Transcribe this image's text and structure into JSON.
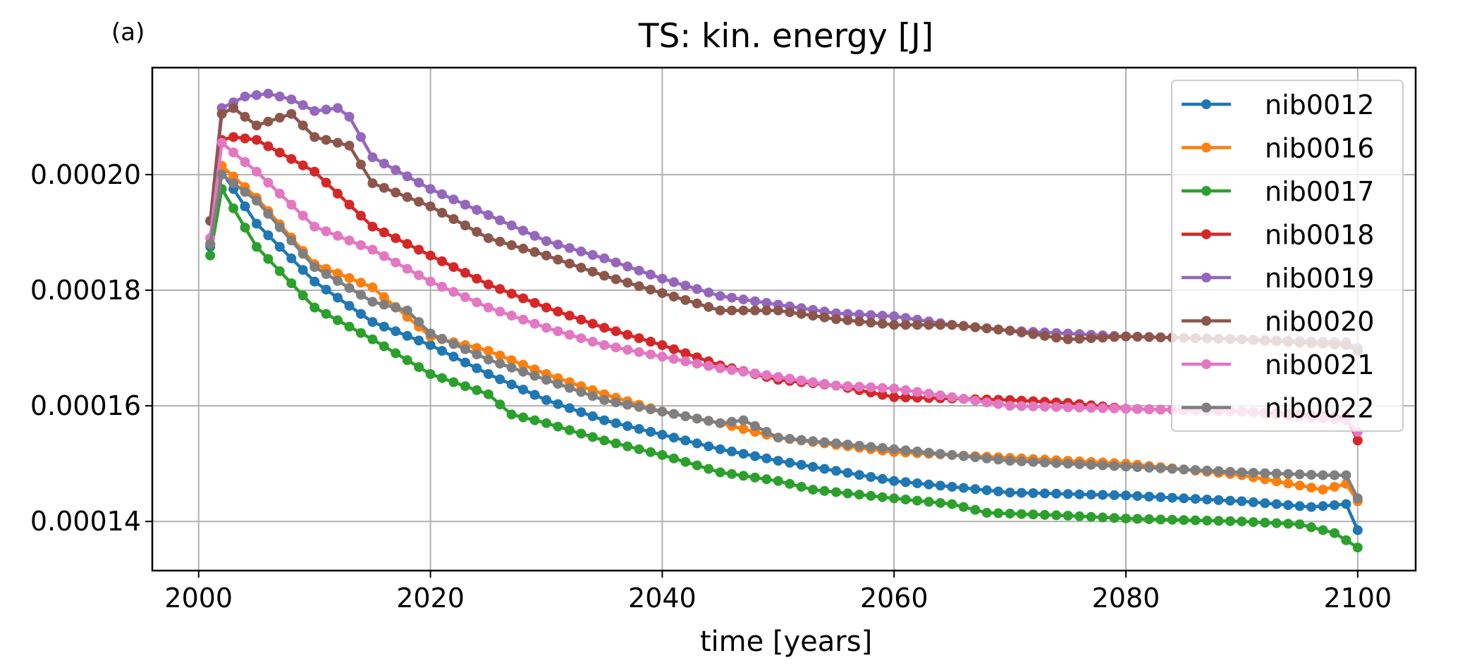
{
  "panel_label": "(a)",
  "chart_data": {
    "type": "line",
    "title": "TS: kin. energy [J]",
    "xlabel": "time [years]",
    "ylabel": "",
    "xlim": [
      1996,
      2105
    ],
    "ylim": [
      0.0001315,
      0.0002185
    ],
    "xticks": [
      2000,
      2020,
      2040,
      2060,
      2080,
      2100
    ],
    "yticks": [
      0.00014,
      0.00016,
      0.00018,
      0.0002
    ],
    "ytick_labels": [
      "0.00014",
      "0.00016",
      "0.00018",
      "0.00020"
    ],
    "grid": true,
    "legend_position": "upper right",
    "series": [
      {
        "name": "nib0012",
        "color": "#1f77b4",
        "points": [
          [
            2001,
            0.0001875
          ],
          [
            2002,
            0.0002005
          ],
          [
            2005,
            0.0001915
          ],
          [
            2010,
            0.0001815
          ],
          [
            2015,
            0.0001745
          ],
          [
            2020,
            0.0001705
          ],
          [
            2025,
            0.0001655
          ],
          [
            2030,
            0.000161
          ],
          [
            2035,
            0.0001575
          ],
          [
            2040,
            0.000155
          ],
          [
            2045,
            0.0001525
          ],
          [
            2050,
            0.0001505
          ],
          [
            2060,
            0.000147
          ],
          [
            2070,
            0.000145
          ],
          [
            2080,
            0.0001445
          ],
          [
            2090,
            0.0001435
          ],
          [
            2096,
            0.0001425
          ],
          [
            2099,
            0.000143
          ],
          [
            2100,
            0.0001385
          ]
        ]
      },
      {
        "name": "nib0016",
        "color": "#ff7f0e",
        "points": [
          [
            2001,
            0.000188
          ],
          [
            2002,
            0.0002015
          ],
          [
            2005,
            0.000196
          ],
          [
            2010,
            0.0001845
          ],
          [
            2015,
            0.0001805
          ],
          [
            2020,
            0.000172
          ],
          [
            2025,
            0.0001695
          ],
          [
            2030,
            0.0001655
          ],
          [
            2035,
            0.000162
          ],
          [
            2040,
            0.000159
          ],
          [
            2045,
            0.000157
          ],
          [
            2050,
            0.0001545
          ],
          [
            2060,
            0.000152
          ],
          [
            2070,
            0.000151
          ],
          [
            2080,
            0.00015
          ],
          [
            2090,
            0.000148
          ],
          [
            2097,
            0.0001455
          ],
          [
            2099,
            0.0001465
          ],
          [
            2100,
            0.0001435
          ]
        ]
      },
      {
        "name": "nib0017",
        "color": "#2ca02c",
        "points": [
          [
            2001,
            0.000186
          ],
          [
            2002,
            0.0001975
          ],
          [
            2005,
            0.0001875
          ],
          [
            2010,
            0.000177
          ],
          [
            2015,
            0.0001715
          ],
          [
            2020,
            0.0001655
          ],
          [
            2025,
            0.000162
          ],
          [
            2027,
            0.0001585
          ],
          [
            2030,
            0.000157
          ],
          [
            2035,
            0.000154
          ],
          [
            2040,
            0.0001515
          ],
          [
            2045,
            0.0001485
          ],
          [
            2050,
            0.000147
          ],
          [
            2053,
            0.0001455
          ],
          [
            2060,
            0.000144
          ],
          [
            2065,
            0.000143
          ],
          [
            2068,
            0.0001415
          ],
          [
            2075,
            0.000141
          ],
          [
            2080,
            0.0001405
          ],
          [
            2090,
            0.00014
          ],
          [
            2095,
            0.0001395
          ],
          [
            2098,
            0.000138
          ],
          [
            2100,
            0.0001355
          ]
        ]
      },
      {
        "name": "nib0018",
        "color": "#d62728",
        "points": [
          [
            2001,
            0.000188
          ],
          [
            2002,
            0.000206
          ],
          [
            2003,
            0.0002065
          ],
          [
            2005,
            0.000206
          ],
          [
            2010,
            0.0002005
          ],
          [
            2015,
            0.000191
          ],
          [
            2020,
            0.000186
          ],
          [
            2025,
            0.000181
          ],
          [
            2030,
            0.000177
          ],
          [
            2035,
            0.0001735
          ],
          [
            2040,
            0.0001705
          ],
          [
            2045,
            0.000167
          ],
          [
            2050,
            0.0001645
          ],
          [
            2055,
            0.0001635
          ],
          [
            2060,
            0.0001615
          ],
          [
            2070,
            0.000161
          ],
          [
            2075,
            0.0001605
          ],
          [
            2080,
            0.0001595
          ],
          [
            2090,
            0.000159
          ],
          [
            2099,
            0.000158
          ],
          [
            2100,
            0.000154
          ]
        ]
      },
      {
        "name": "nib0019",
        "color": "#9467bd",
        "points": [
          [
            2001,
            0.000192
          ],
          [
            2002,
            0.0002115
          ],
          [
            2004,
            0.0002135
          ],
          [
            2006,
            0.000214
          ],
          [
            2008,
            0.000213
          ],
          [
            2010,
            0.000211
          ],
          [
            2012,
            0.0002115
          ],
          [
            2013,
            0.00021
          ],
          [
            2015,
            0.000203
          ],
          [
            2020,
            0.0001975
          ],
          [
            2025,
            0.000193
          ],
          [
            2030,
            0.0001885
          ],
          [
            2035,
            0.0001855
          ],
          [
            2040,
            0.000182
          ],
          [
            2045,
            0.000179
          ],
          [
            2050,
            0.0001775
          ],
          [
            2055,
            0.000176
          ],
          [
            2060,
            0.0001755
          ],
          [
            2065,
            0.000174
          ],
          [
            2070,
            0.000173
          ],
          [
            2080,
            0.000172
          ],
          [
            2090,
            0.0001715
          ],
          [
            2099,
            0.000171
          ],
          [
            2100,
            0.00017
          ]
        ]
      },
      {
        "name": "nib0020",
        "color": "#8c564b",
        "points": [
          [
            2001,
            0.000192
          ],
          [
            2002,
            0.0002105
          ],
          [
            2003,
            0.0002115
          ],
          [
            2005,
            0.0002085
          ],
          [
            2008,
            0.0002105
          ],
          [
            2010,
            0.0002065
          ],
          [
            2013,
            0.000205
          ],
          [
            2015,
            0.0001985
          ],
          [
            2020,
            0.0001945
          ],
          [
            2025,
            0.000189
          ],
          [
            2030,
            0.000186
          ],
          [
            2035,
            0.0001825
          ],
          [
            2040,
            0.0001795
          ],
          [
            2045,
            0.0001765
          ],
          [
            2050,
            0.0001765
          ],
          [
            2055,
            0.000175
          ],
          [
            2060,
            0.000174
          ],
          [
            2065,
            0.000174
          ],
          [
            2070,
            0.000173
          ],
          [
            2075,
            0.0001715
          ],
          [
            2080,
            0.000172
          ],
          [
            2090,
            0.0001715
          ],
          [
            2099,
            0.0001705
          ],
          [
            2100,
            0.0001695
          ]
        ]
      },
      {
        "name": "nib0021",
        "color": "#e377c2",
        "points": [
          [
            2001,
            0.000189
          ],
          [
            2002,
            0.0002055
          ],
          [
            2005,
            0.0002005
          ],
          [
            2010,
            0.000191
          ],
          [
            2015,
            0.000187
          ],
          [
            2020,
            0.0001815
          ],
          [
            2025,
            0.000177
          ],
          [
            2030,
            0.0001735
          ],
          [
            2035,
            0.0001705
          ],
          [
            2040,
            0.0001685
          ],
          [
            2045,
            0.0001665
          ],
          [
            2050,
            0.000165
          ],
          [
            2055,
            0.0001635
          ],
          [
            2060,
            0.000163
          ],
          [
            2065,
            0.0001615
          ],
          [
            2070,
            0.00016
          ],
          [
            2080,
            0.0001595
          ],
          [
            2090,
            0.000159
          ],
          [
            2099,
            0.0001575
          ],
          [
            2100,
            0.0001555
          ]
        ]
      },
      {
        "name": "nib0022",
        "color": "#7f7f7f",
        "points": [
          [
            2001,
            0.000188
          ],
          [
            2002,
            0.0002
          ],
          [
            2005,
            0.0001955
          ],
          [
            2010,
            0.000184
          ],
          [
            2015,
            0.000178
          ],
          [
            2018,
            0.0001765
          ],
          [
            2020,
            0.0001725
          ],
          [
            2025,
            0.000168
          ],
          [
            2030,
            0.0001645
          ],
          [
            2035,
            0.000161
          ],
          [
            2040,
            0.000159
          ],
          [
            2045,
            0.000157
          ],
          [
            2047,
            0.0001575
          ],
          [
            2050,
            0.0001545
          ],
          [
            2060,
            0.0001525
          ],
          [
            2070,
            0.0001505
          ],
          [
            2080,
            0.0001495
          ],
          [
            2090,
            0.0001485
          ],
          [
            2097,
            0.000148
          ],
          [
            2099,
            0.000148
          ],
          [
            2100,
            0.000144
          ]
        ]
      }
    ]
  }
}
